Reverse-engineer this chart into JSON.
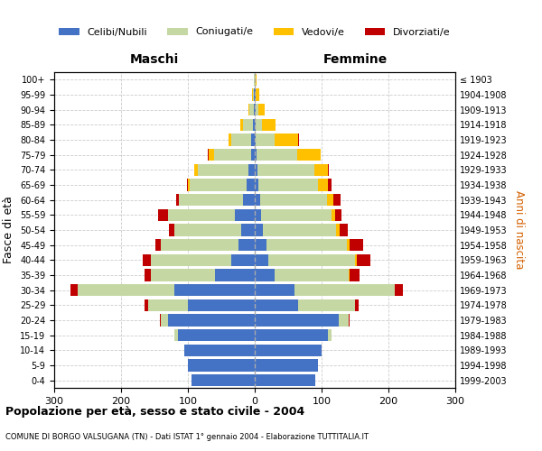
{
  "age_groups": [
    "0-4",
    "5-9",
    "10-14",
    "15-19",
    "20-24",
    "25-29",
    "30-34",
    "35-39",
    "40-44",
    "45-49",
    "50-54",
    "55-59",
    "60-64",
    "65-69",
    "70-74",
    "75-79",
    "80-84",
    "85-89",
    "90-94",
    "95-99",
    "100+"
  ],
  "birth_years": [
    "1999-2003",
    "1994-1998",
    "1989-1993",
    "1984-1988",
    "1979-1983",
    "1974-1978",
    "1969-1973",
    "1964-1968",
    "1959-1963",
    "1954-1958",
    "1949-1953",
    "1944-1948",
    "1939-1943",
    "1934-1938",
    "1929-1933",
    "1924-1928",
    "1919-1923",
    "1914-1918",
    "1909-1913",
    "1904-1908",
    "≤ 1903"
  ],
  "male": {
    "celibi": [
      95,
      100,
      105,
      115,
      130,
      100,
      120,
      60,
      35,
      25,
      20,
      30,
      18,
      12,
      10,
      6,
      5,
      3,
      2,
      1,
      0
    ],
    "coniugati": [
      0,
      0,
      0,
      5,
      10,
      60,
      145,
      95,
      120,
      115,
      100,
      100,
      95,
      85,
      75,
      55,
      30,
      15,
      6,
      2,
      1
    ],
    "vedovi": [
      0,
      0,
      0,
      0,
      0,
      0,
      0,
      0,
      0,
      0,
      0,
      0,
      0,
      3,
      5,
      8,
      4,
      3,
      2,
      1,
      0
    ],
    "divorziati": [
      0,
      0,
      0,
      0,
      2,
      5,
      10,
      10,
      12,
      8,
      8,
      15,
      5,
      2,
      1,
      1,
      0,
      0,
      0,
      0,
      0
    ]
  },
  "female": {
    "nubili": [
      90,
      95,
      100,
      110,
      125,
      65,
      60,
      30,
      20,
      18,
      12,
      10,
      8,
      5,
      4,
      3,
      2,
      1,
      1,
      1,
      0
    ],
    "coniugate": [
      0,
      0,
      0,
      5,
      15,
      85,
      150,
      110,
      130,
      120,
      110,
      105,
      100,
      90,
      85,
      60,
      28,
      10,
      4,
      1,
      1
    ],
    "vedove": [
      0,
      0,
      0,
      0,
      0,
      0,
      0,
      2,
      3,
      4,
      5,
      5,
      10,
      15,
      20,
      35,
      35,
      20,
      10,
      5,
      2
    ],
    "divorziate": [
      0,
      0,
      0,
      0,
      2,
      5,
      12,
      15,
      20,
      20,
      12,
      10,
      10,
      5,
      2,
      1,
      1,
      0,
      0,
      0,
      0
    ]
  },
  "colors": {
    "celibi_nubili": "#4472c4",
    "coniugati": "#c5d8a4",
    "vedovi": "#ffc000",
    "divorziati": "#c00000"
  },
  "xlim": 300,
  "title": "Popolazione per età, sesso e stato civile - 2004",
  "subtitle": "COMUNE DI BORGO VALSUGANA (TN) - Dati ISTAT 1° gennaio 2004 - Elaborazione TUTTITALIA.IT",
  "ylabel": "Fasce di età",
  "ylabel_right": "Anni di nascita",
  "legend_labels": [
    "Celibi/Nubili",
    "Coniugati/e",
    "Vedovi/e",
    "Divorziati/e"
  ],
  "maschi_label": "Maschi",
  "femmine_label": "Femmine"
}
